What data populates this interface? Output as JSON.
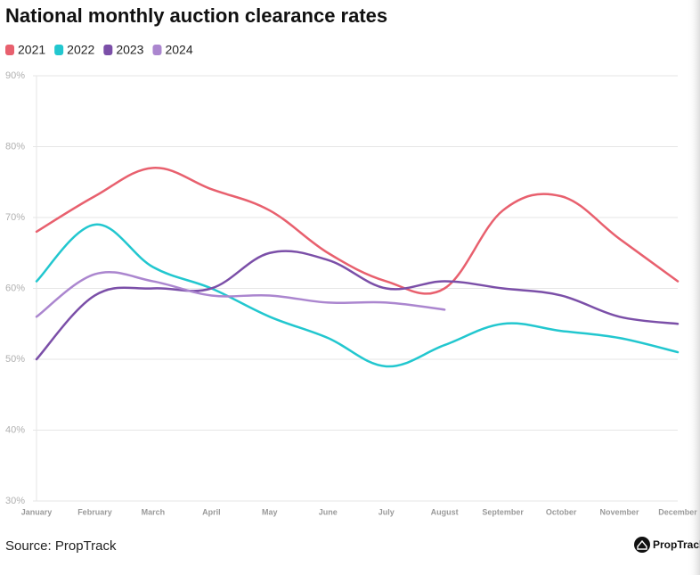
{
  "chart_data": {
    "type": "line",
    "title": "National monthly auction clearance rates",
    "source": "Source: PropTrack",
    "brand": "PropTrack",
    "categories": [
      "January",
      "February",
      "March",
      "April",
      "May",
      "June",
      "July",
      "August",
      "September",
      "October",
      "November",
      "December"
    ],
    "series": [
      {
        "name": "2021",
        "color": "#e8606e",
        "values": [
          68,
          73,
          77,
          74,
          71,
          65,
          61,
          60,
          71,
          73,
          67,
          61
        ]
      },
      {
        "name": "2022",
        "color": "#22c7cf",
        "values": [
          61,
          69,
          63,
          60,
          56,
          53,
          49,
          52,
          55,
          54,
          53,
          51
        ]
      },
      {
        "name": "2023",
        "color": "#7b4fa8",
        "values": [
          50,
          59,
          60,
          60,
          65,
          64,
          60,
          61,
          60,
          59,
          56,
          55
        ]
      },
      {
        "name": "2024",
        "color": "#ab86cf",
        "values": [
          56,
          62,
          61,
          59,
          59,
          58,
          58,
          57,
          null,
          null,
          null,
          null
        ]
      }
    ],
    "ylim": [
      30,
      90
    ],
    "yticks": [
      {
        "value": 30,
        "label": "30%"
      },
      {
        "value": 40,
        "label": "40%"
      },
      {
        "value": 50,
        "label": "50%"
      },
      {
        "value": 60,
        "label": "60%"
      },
      {
        "value": 70,
        "label": "70%"
      },
      {
        "value": 80,
        "label": "80%"
      },
      {
        "value": 90,
        "label": "90%"
      }
    ],
    "grid": true,
    "legend": "top-left"
  }
}
